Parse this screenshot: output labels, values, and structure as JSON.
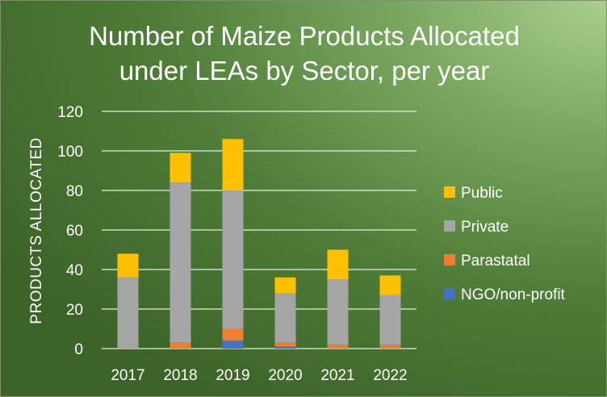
{
  "chart_data": {
    "type": "bar",
    "stacked": true,
    "title_lines": [
      "Number of Maize Products Allocated",
      "under LEAs by Sector, per year"
    ],
    "ylabel": "PRODUCTS ALLOCATED",
    "xlabel": "",
    "ylim": [
      0,
      120
    ],
    "yticks": [
      0,
      20,
      40,
      60,
      80,
      100,
      120
    ],
    "grid": true,
    "legend_position": "right",
    "categories": [
      "2017",
      "2018",
      "2019",
      "2020",
      "2021",
      "2022"
    ],
    "series": [
      {
        "name": "NGO/non-profit",
        "color": "#4472c4",
        "values": [
          0,
          0,
          4,
          1,
          0,
          0
        ]
      },
      {
        "name": "Parastatal",
        "color": "#ed7d31",
        "values": [
          0,
          3,
          6,
          2,
          2,
          2
        ]
      },
      {
        "name": "Private",
        "color": "#a5a5a5",
        "values": [
          36,
          81,
          70,
          25,
          33,
          25
        ]
      },
      {
        "name": "Public",
        "color": "#ffc000",
        "values": [
          12,
          15,
          26,
          8,
          15,
          10
        ]
      }
    ],
    "legend_order": [
      "Public",
      "Private",
      "Parastatal",
      "NGO/non-profit"
    ]
  }
}
